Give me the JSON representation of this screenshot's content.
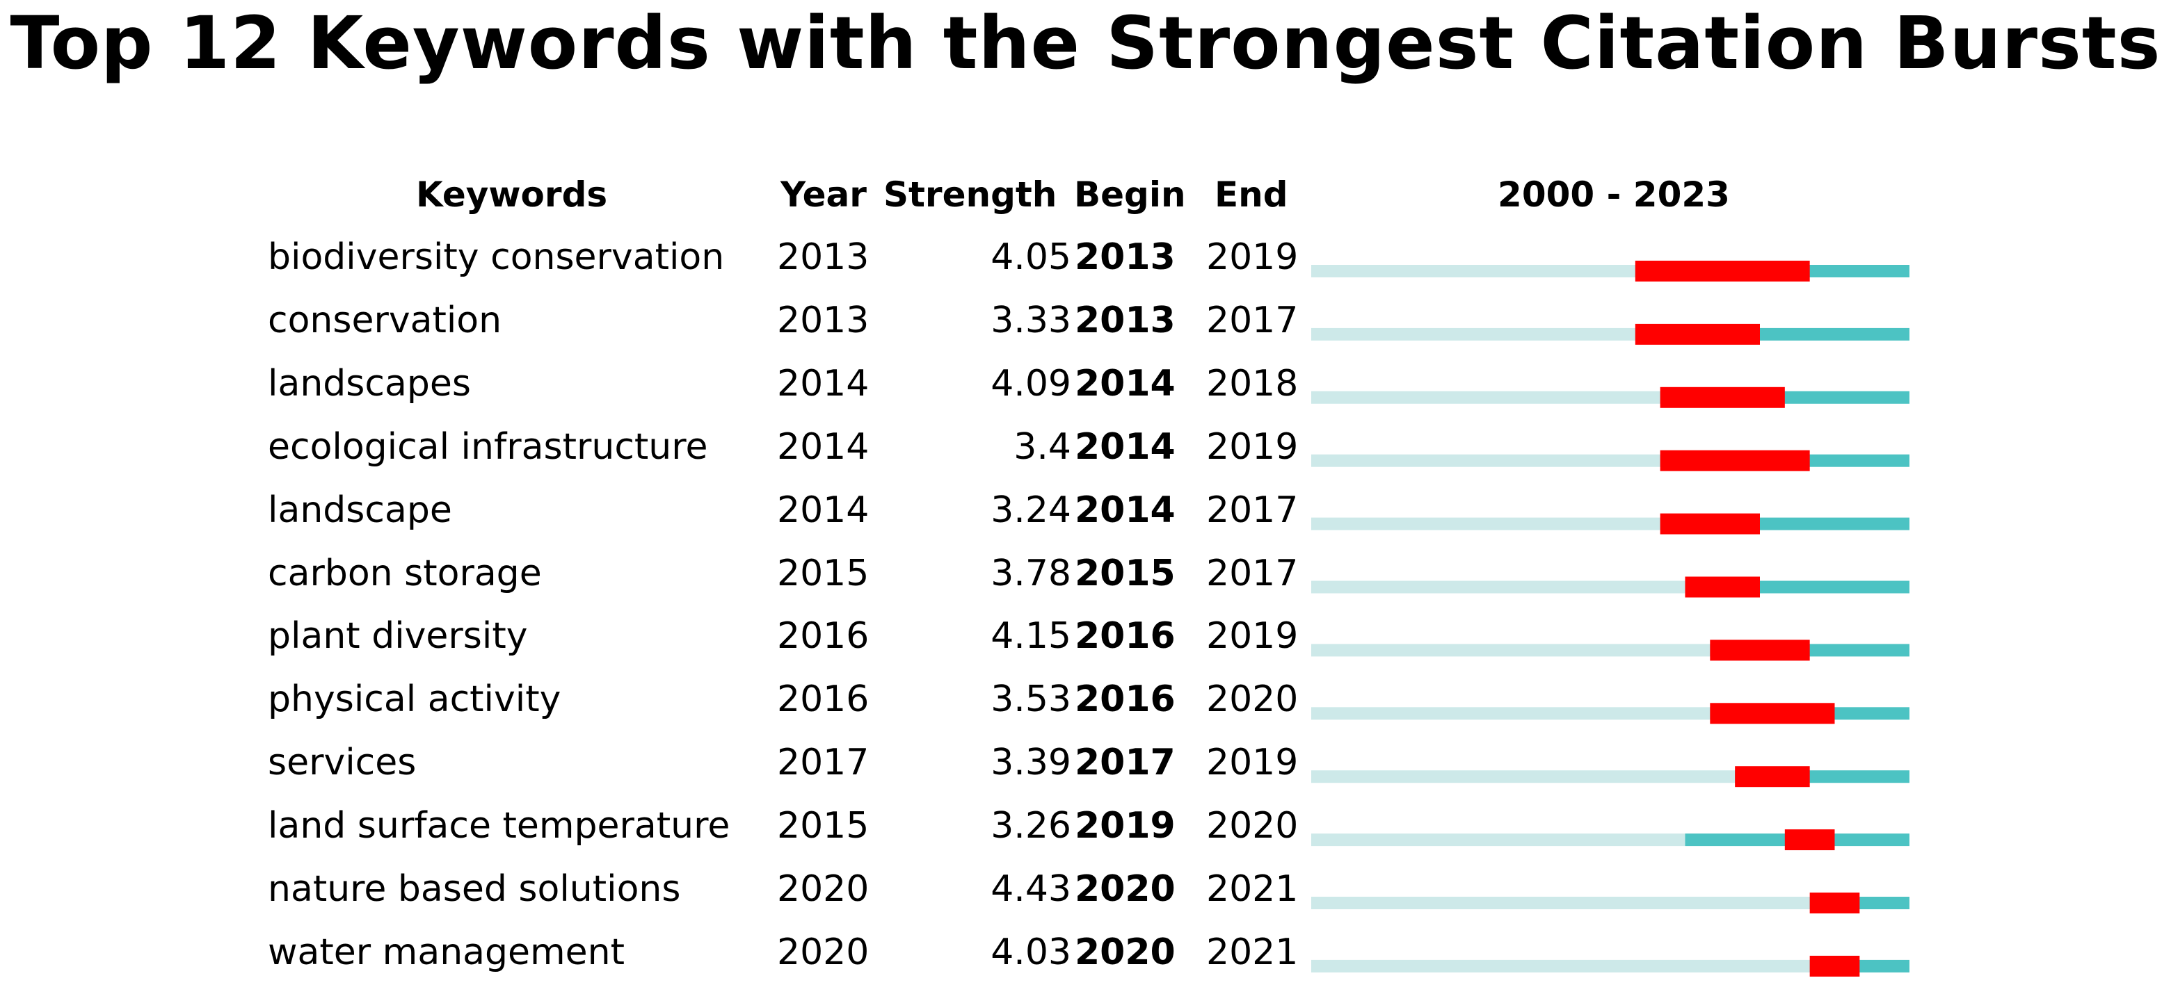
{
  "chart_data": {
    "type": "table",
    "title": "Top 12 Keywords with the Strongest Citation Bursts",
    "columns": {
      "keywords": "Keywords",
      "year": "Year",
      "strength": "Strength",
      "begin": "Begin",
      "end": "End",
      "range": "2000 - 2023"
    },
    "range_start": 2000,
    "range_end": 2023,
    "rows": [
      {
        "keyword": "biodiversity conservation",
        "year": "2013",
        "strength": "4.05",
        "begin": "2013",
        "end": "2019"
      },
      {
        "keyword": "conservation",
        "year": "2013",
        "strength": "3.33",
        "begin": "2013",
        "end": "2017"
      },
      {
        "keyword": "landscapes",
        "year": "2014",
        "strength": "4.09",
        "begin": "2014",
        "end": "2018"
      },
      {
        "keyword": "ecological infrastructure",
        "year": "2014",
        "strength": "3.4",
        "begin": "2014",
        "end": "2019"
      },
      {
        "keyword": "landscape",
        "year": "2014",
        "strength": "3.24",
        "begin": "2014",
        "end": "2017"
      },
      {
        "keyword": "carbon storage",
        "year": "2015",
        "strength": "3.78",
        "begin": "2015",
        "end": "2017"
      },
      {
        "keyword": "plant diversity",
        "year": "2016",
        "strength": "4.15",
        "begin": "2016",
        "end": "2019"
      },
      {
        "keyword": "physical activity",
        "year": "2016",
        "strength": "3.53",
        "begin": "2016",
        "end": "2020"
      },
      {
        "keyword": "services",
        "year": "2017",
        "strength": "3.39",
        "begin": "2017",
        "end": "2019"
      },
      {
        "keyword": "land surface temperature",
        "year": "2015",
        "strength": "3.26",
        "begin": "2019",
        "end": "2020"
      },
      {
        "keyword": "nature based solutions",
        "year": "2020",
        "strength": "4.43",
        "begin": "2020",
        "end": "2021"
      },
      {
        "keyword": "water management",
        "year": "2020",
        "strength": "4.03",
        "begin": "2020",
        "end": "2021"
      }
    ],
    "colors": {
      "before_appearance": "#cde9e9",
      "after_appearance": "#4cc3c3",
      "burst": "#ff0000"
    }
  }
}
